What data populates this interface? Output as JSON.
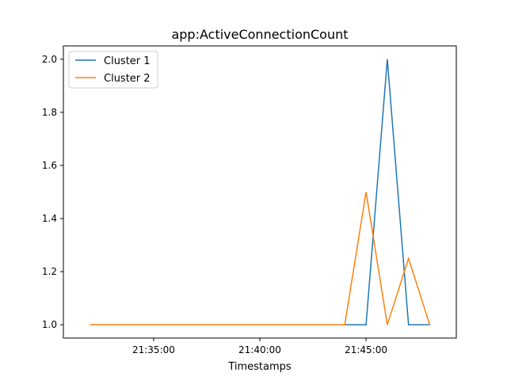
{
  "chart_data": {
    "type": "line",
    "title": "app:ActiveConnectionCount",
    "xlabel": "Timestamps",
    "ylabel": "",
    "x_ticks": [
      "21:35:00",
      "21:40:00",
      "21:45:00"
    ],
    "y_ticks": [
      "1.0",
      "1.2",
      "1.4",
      "1.6",
      "1.8",
      "2.0"
    ],
    "xlim": [
      "21:30:45",
      "21:49:15"
    ],
    "ylim": [
      0.95,
      2.05
    ],
    "grid": false,
    "legend_position": "top-left",
    "series": [
      {
        "name": "Cluster 1",
        "color": "#1f77b4",
        "x": [
          "21:41:00",
          "21:42:00",
          "21:43:00",
          "21:44:00",
          "21:45:00",
          "21:46:00",
          "21:47:00",
          "21:48:00"
        ],
        "values": [
          1.0,
          1.0,
          1.0,
          1.0,
          1.0,
          2.0,
          1.0,
          1.0
        ]
      },
      {
        "name": "Cluster 2",
        "color": "#ff7f0e",
        "x": [
          "21:32:00",
          "21:33:00",
          "21:34:00",
          "21:35:00",
          "21:36:00",
          "21:37:00",
          "21:38:00",
          "21:39:00",
          "21:40:00",
          "21:41:00",
          "21:42:00",
          "21:43:00",
          "21:44:00",
          "21:45:00",
          "21:46:00",
          "21:47:00",
          "21:48:00"
        ],
        "values": [
          1.0,
          1.0,
          1.0,
          1.0,
          1.0,
          1.0,
          1.0,
          1.0,
          1.0,
          1.0,
          1.0,
          1.0,
          1.0,
          1.5,
          1.0,
          1.25,
          1.0
        ]
      }
    ]
  }
}
